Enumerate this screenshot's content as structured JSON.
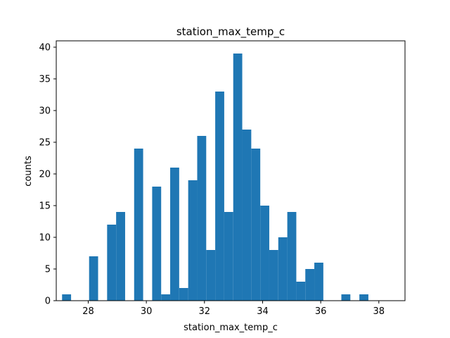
{
  "chart_data": {
    "type": "bar",
    "title": "station_max_temp_c",
    "xlabel": "station_max_temp_c",
    "ylabel": "counts",
    "xlim": [
      26.9,
      38.9
    ],
    "ylim": [
      0,
      41
    ],
    "xticks": [
      28,
      30,
      32,
      34,
      36,
      38
    ],
    "yticks": [
      0,
      5,
      10,
      15,
      20,
      25,
      30,
      35,
      40
    ],
    "grid": false,
    "bar_color": "#1f77b4",
    "bin_start": 27.1,
    "bin_width": 0.31,
    "counts": [
      1,
      0,
      0,
      7,
      0,
      12,
      14,
      0,
      24,
      0,
      18,
      1,
      21,
      2,
      19,
      26,
      8,
      33,
      14,
      39,
      27,
      24,
      15,
      8,
      10,
      14,
      3,
      5,
      6,
      0,
      0,
      1,
      0,
      1
    ]
  }
}
